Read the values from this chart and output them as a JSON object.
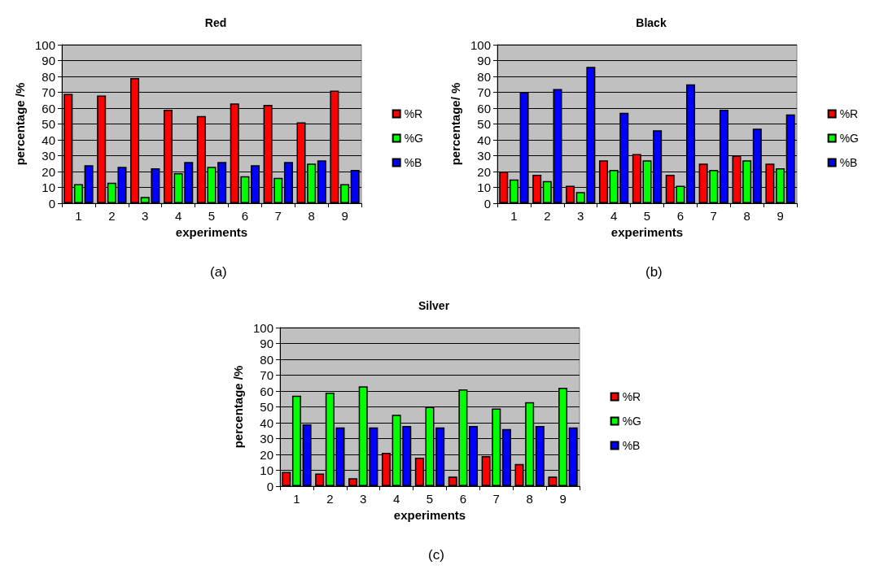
{
  "chart_data": [
    {
      "type": "bar",
      "title": "Red",
      "xlabel": "experiments",
      "ylabel": "percentage /%",
      "categories": [
        "1",
        "2",
        "3",
        "4",
        "5",
        "6",
        "7",
        "8",
        "9"
      ],
      "series": [
        {
          "name": "%R",
          "color": "#ff0000",
          "values": [
            69,
            68,
            79,
            59,
            55,
            63,
            62,
            51,
            71
          ]
        },
        {
          "name": "%G",
          "color": "#00ff00",
          "values": [
            12,
            13,
            4,
            19,
            23,
            17,
            16,
            25,
            12
          ]
        },
        {
          "name": "%B",
          "color": "#0000ff",
          "values": [
            24,
            23,
            22,
            26,
            26,
            24,
            26,
            27,
            21
          ]
        }
      ],
      "ylim": [
        0,
        100
      ],
      "yticks": [
        0,
        10,
        20,
        30,
        40,
        50,
        60,
        70,
        80,
        90,
        100
      ],
      "grid": "y",
      "legend": "right",
      "annotations": [
        "(a)"
      ]
    },
    {
      "type": "bar",
      "title": "Black",
      "xlabel": "experiments",
      "ylabel": "percentage/ %",
      "categories": [
        "1",
        "2",
        "3",
        "4",
        "5",
        "6",
        "7",
        "8",
        "9"
      ],
      "series": [
        {
          "name": "%R",
          "color": "#ff0000",
          "values": [
            20,
            18,
            11,
            27,
            31,
            18,
            25,
            30,
            25
          ]
        },
        {
          "name": "%G",
          "color": "#00ff00",
          "values": [
            15,
            14,
            7,
            21,
            27,
            11,
            21,
            27,
            22
          ]
        },
        {
          "name": "%B",
          "color": "#0000ff",
          "values": [
            70,
            72,
            86,
            57,
            46,
            75,
            59,
            47,
            56
          ]
        }
      ],
      "ylim": [
        0,
        100
      ],
      "yticks": [
        0,
        10,
        20,
        30,
        40,
        50,
        60,
        70,
        80,
        90,
        100
      ],
      "grid": "y",
      "legend": "right",
      "annotations": [
        "(b)"
      ]
    },
    {
      "type": "bar",
      "title": "Silver",
      "xlabel": "experiments",
      "ylabel": "percentage /%",
      "categories": [
        "1",
        "2",
        "3",
        "4",
        "5",
        "6",
        "7",
        "8",
        "9"
      ],
      "series": [
        {
          "name": "%R",
          "color": "#ff0000",
          "values": [
            9,
            8,
            5,
            21,
            18,
            6,
            19,
            14,
            6
          ]
        },
        {
          "name": "%G",
          "color": "#00ff00",
          "values": [
            57,
            59,
            63,
            45,
            50,
            61,
            49,
            53,
            62
          ]
        },
        {
          "name": "%B",
          "color": "#0000ff",
          "values": [
            39,
            37,
            37,
            38,
            37,
            38,
            36,
            38,
            37
          ]
        }
      ],
      "ylim": [
        0,
        100
      ],
      "yticks": [
        0,
        10,
        20,
        30,
        40,
        50,
        60,
        70,
        80,
        90,
        100
      ],
      "grid": "y",
      "legend": "right",
      "annotations": [
        "(c)"
      ]
    }
  ]
}
